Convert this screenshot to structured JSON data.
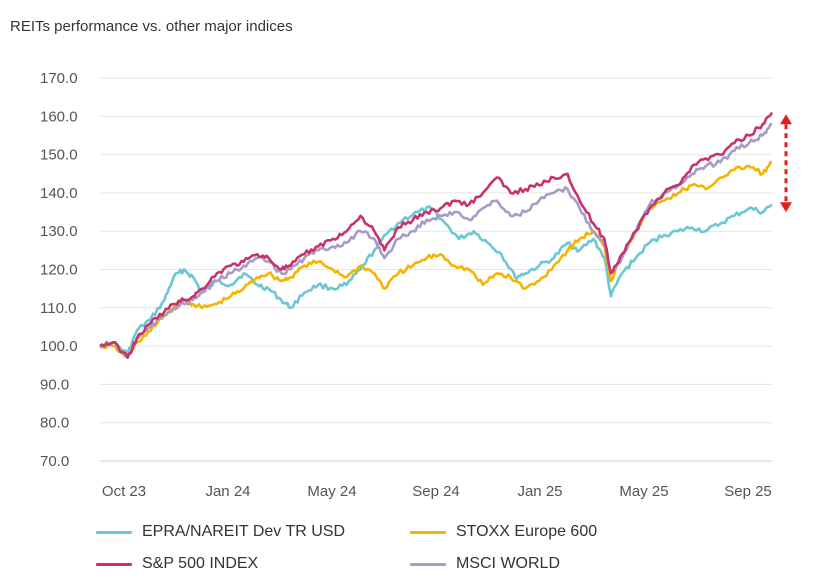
{
  "chart_data": {
    "type": "line",
    "title": "REITs performance vs. other major indices",
    "xlabel": "",
    "ylabel": "",
    "ylim": [
      70,
      170
    ],
    "y_ticks": [
      "170.0",
      "160.0",
      "150.0",
      "140.0",
      "130.0",
      "120.0",
      "110.0",
      "100.0",
      "90.0",
      "80.0",
      "70.0"
    ],
    "x_ticks": [
      "Oct 23",
      "Jan 24",
      "May 24",
      "Sep 24",
      "Jan 25",
      "May 25",
      "Sep 25"
    ],
    "x_range": [
      "2023-10-01",
      "2025-09-30"
    ],
    "grid": "horizontal",
    "legend_placement": "bottom",
    "annotation": "red dashed double-headed arrow at right edge between 136 and 160",
    "series": [
      {
        "name": "EPRA/NAREIT Dev TR USD",
        "color": "#6cc7d4",
        "points": [
          [
            "2023-10-01",
            100
          ],
          [
            "2023-10-15",
            101
          ],
          [
            "2023-10-31",
            98
          ],
          [
            "2023-11-10",
            104
          ],
          [
            "2023-11-25",
            107
          ],
          [
            "2023-12-10",
            112
          ],
          [
            "2023-12-20",
            118
          ],
          [
            "2023-12-31",
            120
          ],
          [
            "2024-01-10",
            118
          ],
          [
            "2024-01-20",
            114
          ],
          [
            "2024-02-05",
            117
          ],
          [
            "2024-02-20",
            116
          ],
          [
            "2024-03-05",
            119
          ],
          [
            "2024-03-20",
            116
          ],
          [
            "2024-04-01",
            115
          ],
          [
            "2024-04-15",
            112
          ],
          [
            "2024-04-25",
            110
          ],
          [
            "2024-05-10",
            114
          ],
          [
            "2024-05-25",
            116
          ],
          [
            "2024-06-10",
            115
          ],
          [
            "2024-06-25",
            116
          ],
          [
            "2024-07-10",
            120
          ],
          [
            "2024-07-25",
            125
          ],
          [
            "2024-08-10",
            130
          ],
          [
            "2024-08-25",
            133
          ],
          [
            "2024-09-10",
            135
          ],
          [
            "2024-09-25",
            136
          ],
          [
            "2024-10-10",
            132
          ],
          [
            "2024-10-25",
            128
          ],
          [
            "2024-11-10",
            130
          ],
          [
            "2024-11-25",
            127
          ],
          [
            "2024-12-10",
            124
          ],
          [
            "2024-12-25",
            118
          ],
          [
            "2025-01-05",
            119
          ],
          [
            "2025-01-20",
            121
          ],
          [
            "2025-02-05",
            123
          ],
          [
            "2025-02-20",
            127
          ],
          [
            "2025-03-05",
            125
          ],
          [
            "2025-03-20",
            128
          ],
          [
            "2025-04-01",
            123
          ],
          [
            "2025-04-08",
            113
          ],
          [
            "2025-04-20",
            119
          ],
          [
            "2025-05-05",
            123
          ],
          [
            "2025-05-20",
            127
          ],
          [
            "2025-06-05",
            129
          ],
          [
            "2025-06-20",
            130
          ],
          [
            "2025-07-05",
            131
          ],
          [
            "2025-07-20",
            130
          ],
          [
            "2025-08-05",
            132
          ],
          [
            "2025-08-20",
            134
          ],
          [
            "2025-09-05",
            136
          ],
          [
            "2025-09-20",
            135
          ],
          [
            "2025-09-30",
            137
          ]
        ]
      },
      {
        "name": "STOXX Europe 600",
        "color": "#f5b400",
        "points": [
          [
            "2023-10-01",
            100
          ],
          [
            "2023-10-15",
            100
          ],
          [
            "2023-10-31",
            97
          ],
          [
            "2023-11-10",
            101
          ],
          [
            "2023-11-25",
            104
          ],
          [
            "2023-12-10",
            108
          ],
          [
            "2023-12-20",
            110
          ],
          [
            "2023-12-31",
            112
          ],
          [
            "2024-01-10",
            111
          ],
          [
            "2024-01-20",
            110
          ],
          [
            "2024-02-05",
            111
          ],
          [
            "2024-02-20",
            113
          ],
          [
            "2024-03-05",
            115
          ],
          [
            "2024-03-20",
            118
          ],
          [
            "2024-04-01",
            119
          ],
          [
            "2024-04-15",
            117
          ],
          [
            "2024-04-25",
            118
          ],
          [
            "2024-05-10",
            121
          ],
          [
            "2024-05-25",
            122
          ],
          [
            "2024-06-10",
            120
          ],
          [
            "2024-06-25",
            118
          ],
          [
            "2024-07-10",
            121
          ],
          [
            "2024-07-25",
            119
          ],
          [
            "2024-08-05",
            115
          ],
          [
            "2024-08-20",
            119
          ],
          [
            "2024-09-05",
            121
          ],
          [
            "2024-09-20",
            123
          ],
          [
            "2024-10-05",
            124
          ],
          [
            "2024-10-20",
            121
          ],
          [
            "2024-11-05",
            120
          ],
          [
            "2024-11-20",
            116
          ],
          [
            "2024-12-05",
            119
          ],
          [
            "2024-12-20",
            118
          ],
          [
            "2025-01-05",
            115
          ],
          [
            "2025-01-20",
            117
          ],
          [
            "2025-02-05",
            121
          ],
          [
            "2025-02-20",
            125
          ],
          [
            "2025-03-05",
            128
          ],
          [
            "2025-03-20",
            130
          ],
          [
            "2025-04-01",
            126
          ],
          [
            "2025-04-08",
            117
          ],
          [
            "2025-04-20",
            124
          ],
          [
            "2025-05-05",
            130
          ],
          [
            "2025-05-20",
            136
          ],
          [
            "2025-06-05",
            138
          ],
          [
            "2025-06-20",
            140
          ],
          [
            "2025-07-05",
            142
          ],
          [
            "2025-07-20",
            141
          ],
          [
            "2025-08-05",
            144
          ],
          [
            "2025-08-20",
            146
          ],
          [
            "2025-09-05",
            147
          ],
          [
            "2025-09-20",
            145
          ],
          [
            "2025-09-30",
            148
          ]
        ]
      },
      {
        "name": "S&P 500 INDEX",
        "color": "#c8336e",
        "points": [
          [
            "2023-10-01",
            100
          ],
          [
            "2023-10-15",
            101
          ],
          [
            "2023-10-31",
            97
          ],
          [
            "2023-11-10",
            102
          ],
          [
            "2023-11-25",
            106
          ],
          [
            "2023-12-10",
            109
          ],
          [
            "2023-12-20",
            111
          ],
          [
            "2023-12-31",
            112
          ],
          [
            "2024-01-10",
            113
          ],
          [
            "2024-01-20",
            115
          ],
          [
            "2024-02-05",
            119
          ],
          [
            "2024-02-20",
            121
          ],
          [
            "2024-03-05",
            122
          ],
          [
            "2024-03-20",
            124
          ],
          [
            "2024-04-01",
            123
          ],
          [
            "2024-04-15",
            120
          ],
          [
            "2024-04-25",
            121
          ],
          [
            "2024-05-10",
            124
          ],
          [
            "2024-05-25",
            126
          ],
          [
            "2024-06-10",
            128
          ],
          [
            "2024-06-25",
            130
          ],
          [
            "2024-07-10",
            134
          ],
          [
            "2024-07-25",
            130
          ],
          [
            "2024-08-05",
            125
          ],
          [
            "2024-08-20",
            131
          ],
          [
            "2024-09-05",
            133
          ],
          [
            "2024-09-20",
            135
          ],
          [
            "2024-10-05",
            136
          ],
          [
            "2024-10-20",
            138
          ],
          [
            "2024-11-05",
            137
          ],
          [
            "2024-11-20",
            140
          ],
          [
            "2024-12-05",
            144
          ],
          [
            "2024-12-20",
            140
          ],
          [
            "2025-01-05",
            141
          ],
          [
            "2025-01-20",
            142
          ],
          [
            "2025-02-05",
            144
          ],
          [
            "2025-02-20",
            145
          ],
          [
            "2025-03-05",
            138
          ],
          [
            "2025-03-20",
            132
          ],
          [
            "2025-04-01",
            128
          ],
          [
            "2025-04-08",
            119
          ],
          [
            "2025-04-20",
            124
          ],
          [
            "2025-05-05",
            130
          ],
          [
            "2025-05-20",
            136
          ],
          [
            "2025-06-05",
            140
          ],
          [
            "2025-06-20",
            142
          ],
          [
            "2025-07-05",
            147
          ],
          [
            "2025-07-20",
            149
          ],
          [
            "2025-08-05",
            150
          ],
          [
            "2025-08-20",
            153
          ],
          [
            "2025-09-05",
            155
          ],
          [
            "2025-09-20",
            158
          ],
          [
            "2025-09-30",
            161
          ]
        ]
      },
      {
        "name": "MSCI WORLD",
        "color": "#a79cc6",
        "points": [
          [
            "2023-10-01",
            100
          ],
          [
            "2023-10-15",
            101
          ],
          [
            "2023-10-31",
            97
          ],
          [
            "2023-11-10",
            102
          ],
          [
            "2023-11-25",
            105
          ],
          [
            "2023-12-10",
            108
          ],
          [
            "2023-12-20",
            110
          ],
          [
            "2023-12-31",
            111
          ],
          [
            "2024-01-10",
            112
          ],
          [
            "2024-01-20",
            114
          ],
          [
            "2024-02-05",
            117
          ],
          [
            "2024-02-20",
            119
          ],
          [
            "2024-03-05",
            121
          ],
          [
            "2024-03-20",
            123
          ],
          [
            "2024-04-01",
            122
          ],
          [
            "2024-04-15",
            119
          ],
          [
            "2024-04-25",
            120
          ],
          [
            "2024-05-10",
            123
          ],
          [
            "2024-05-25",
            125
          ],
          [
            "2024-06-10",
            126
          ],
          [
            "2024-06-25",
            127
          ],
          [
            "2024-07-10",
            130
          ],
          [
            "2024-07-25",
            128
          ],
          [
            "2024-08-05",
            123
          ],
          [
            "2024-08-20",
            128
          ],
          [
            "2024-09-05",
            130
          ],
          [
            "2024-09-20",
            133
          ],
          [
            "2024-10-05",
            134
          ],
          [
            "2024-10-20",
            135
          ],
          [
            "2024-11-05",
            133
          ],
          [
            "2024-11-20",
            136
          ],
          [
            "2024-12-05",
            138
          ],
          [
            "2024-12-20",
            134
          ],
          [
            "2025-01-05",
            135
          ],
          [
            "2025-01-20",
            138
          ],
          [
            "2025-02-05",
            140
          ],
          [
            "2025-02-20",
            141
          ],
          [
            "2025-03-05",
            136
          ],
          [
            "2025-03-20",
            130
          ],
          [
            "2025-04-01",
            127
          ],
          [
            "2025-04-08",
            119
          ],
          [
            "2025-04-20",
            123
          ],
          [
            "2025-05-05",
            130
          ],
          [
            "2025-05-20",
            137
          ],
          [
            "2025-06-05",
            140
          ],
          [
            "2025-06-20",
            142
          ],
          [
            "2025-07-05",
            145
          ],
          [
            "2025-07-20",
            147
          ],
          [
            "2025-08-05",
            148
          ],
          [
            "2025-08-20",
            151
          ],
          [
            "2025-09-05",
            153
          ],
          [
            "2025-09-20",
            155
          ],
          [
            "2025-09-30",
            158
          ]
        ]
      }
    ]
  },
  "legend": [
    {
      "label": "EPRA/NAREIT Dev TR USD",
      "color": "#6cc7d4"
    },
    {
      "label": "STOXX Europe 600",
      "color": "#f5b400"
    },
    {
      "label": "S&P 500 INDEX",
      "color": "#c8336e"
    },
    {
      "label": "MSCI WORLD",
      "color": "#a79cc6"
    }
  ],
  "colors": {
    "grid": "#e6e6e6",
    "axis": "#cccccc",
    "annotation_arrow": "#e02020"
  }
}
